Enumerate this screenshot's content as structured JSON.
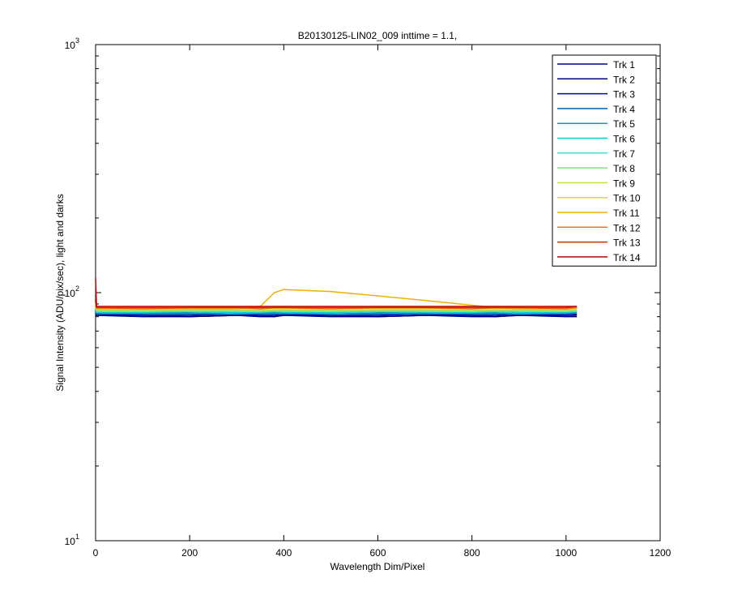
{
  "chart_data": {
    "type": "line",
    "title": "B20130125-LIN02_009 inttime = 1.1,",
    "x_label": "Wavelength Dim/Pixel",
    "y_label": "Signal Intensity (ADU/pix/sec), light and darks",
    "xlim": [
      0,
      1200
    ],
    "xticks": [
      0,
      200,
      400,
      600,
      800,
      1000,
      1200
    ],
    "ylim": [
      10,
      1000
    ],
    "log_y": true,
    "minor_ticks": true,
    "yticks": [
      {
        "value": 10,
        "label": "10",
        "exponent": "1"
      },
      {
        "value": 100,
        "label": "10",
        "exponent": "2"
      },
      {
        "value": 1000,
        "label": "10",
        "exponent": "3"
      }
    ],
    "legend": "northeast",
    "x": [
      0,
      2,
      100,
      200,
      300,
      350,
      380,
      400,
      500,
      600,
      700,
      800,
      850,
      900,
      1000,
      1023
    ],
    "series": [
      {
        "name": "Trk 1",
        "color": "#000080",
        "values": [
          84,
          81,
          80,
          80,
          81,
          80,
          80,
          81,
          80,
          80,
          81,
          80,
          80,
          81,
          80,
          80
        ]
      },
      {
        "name": "Trk 2",
        "color": "#00007a",
        "values": [
          85,
          81,
          81,
          80,
          81,
          81,
          80,
          81,
          81,
          80,
          81,
          81,
          80,
          81,
          81,
          81
        ]
      },
      {
        "name": "Trk 3",
        "color": "#0000c0",
        "values": [
          85,
          82,
          81,
          81,
          82,
          81,
          81,
          82,
          81,
          81,
          82,
          81,
          81,
          82,
          81,
          82
        ]
      },
      {
        "name": "Trk 4",
        "color": "#0060b0",
        "values": [
          86,
          82,
          82,
          82,
          82,
          82,
          82,
          82,
          82,
          82,
          82,
          82,
          82,
          82,
          82,
          83
        ]
      },
      {
        "name": "Trk 5",
        "color": "#00a0c0",
        "values": [
          86,
          83,
          83,
          83,
          82,
          83,
          83,
          83,
          82,
          83,
          83,
          83,
          83,
          82,
          83,
          83
        ]
      },
      {
        "name": "Trk 6",
        "color": "#00d0d0",
        "values": [
          87,
          83,
          83,
          84,
          83,
          83,
          84,
          83,
          83,
          84,
          83,
          83,
          84,
          83,
          83,
          84
        ]
      },
      {
        "name": "Trk 7",
        "color": "#40e0d0",
        "values": [
          87,
          84,
          84,
          84,
          84,
          84,
          84,
          84,
          84,
          84,
          84,
          84,
          84,
          84,
          84,
          84
        ]
      },
      {
        "name": "Trk 8",
        "color": "#80e080",
        "values": [
          88,
          85,
          84,
          85,
          85,
          84,
          85,
          85,
          84,
          85,
          85,
          84,
          85,
          85,
          84,
          85
        ]
      },
      {
        "name": "Trk 9",
        "color": "#c0e040",
        "values": [
          88,
          85,
          85,
          85,
          85,
          85,
          85,
          85,
          85,
          85,
          85,
          85,
          85,
          85,
          85,
          86
        ]
      },
      {
        "name": "Trk 10",
        "color": "#e0e000",
        "values": [
          89,
          86,
          86,
          86,
          86,
          86,
          86,
          86,
          86,
          86,
          86,
          86,
          86,
          86,
          86,
          86
        ]
      },
      {
        "name": "Trk 11",
        "color": "#f0b000",
        "values": [
          89,
          86,
          86,
          86,
          86,
          88,
          100,
          103,
          101,
          97,
          93,
          89,
          87,
          86,
          86,
          87
        ]
      },
      {
        "name": "Trk 12",
        "color": "#f07020",
        "values": [
          90,
          87,
          86,
          87,
          87,
          86,
          87,
          87,
          86,
          87,
          87,
          86,
          87,
          87,
          86,
          87
        ]
      },
      {
        "name": "Trk 13",
        "color": "#d03000",
        "values": [
          91,
          87,
          87,
          87,
          87,
          87,
          87,
          87,
          87,
          87,
          87,
          87,
          87,
          87,
          87,
          88
        ]
      },
      {
        "name": "Trk 14",
        "color": "#c00000",
        "values": [
          115,
          88,
          88,
          88,
          88,
          88,
          88,
          88,
          88,
          88,
          88,
          88,
          88,
          88,
          88,
          88
        ]
      }
    ]
  }
}
